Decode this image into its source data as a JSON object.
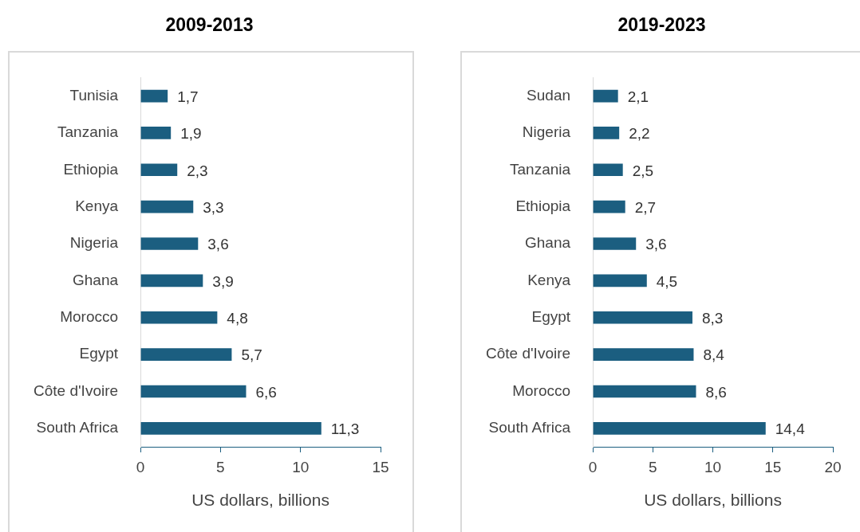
{
  "chart_data": [
    {
      "type": "bar",
      "orientation": "horizontal",
      "title": "2009-2013",
      "xlabel": "US dollars, billions",
      "categories": [
        "Tunisia",
        "Tanzania",
        "Ethiopia",
        "Kenya",
        "Nigeria",
        "Ghana",
        "Morocco",
        "Egypt",
        "Côte d'Ivoire",
        "South Africa"
      ],
      "values": [
        1.7,
        1.9,
        2.3,
        3.3,
        3.6,
        3.9,
        4.8,
        5.7,
        6.6,
        11.3
      ],
      "value_labels": [
        "1,7",
        "1,9",
        "2,3",
        "3,3",
        "3,6",
        "3,9",
        "4,8",
        "5,7",
        "6,6",
        "11,3"
      ],
      "color": "#1b5e80",
      "xlim": [
        0,
        15
      ],
      "xticks": [
        0,
        5,
        10,
        15
      ]
    },
    {
      "type": "bar",
      "orientation": "horizontal",
      "title": "2019-2023",
      "xlabel": "US dollars, billions",
      "categories": [
        "Sudan",
        "Nigeria",
        "Tanzania",
        "Ethiopia",
        "Ghana",
        "Kenya",
        "Egypt",
        "Côte d'Ivoire",
        "Morocco",
        "South Africa"
      ],
      "values": [
        2.1,
        2.2,
        2.5,
        2.7,
        3.6,
        4.5,
        8.3,
        8.4,
        8.6,
        14.4
      ],
      "value_labels": [
        "2,1",
        "2,2",
        "2,5",
        "2,7",
        "3,6",
        "4,5",
        "8,3",
        "8,4",
        "8,6",
        "14,4"
      ],
      "color": "#1b5e80",
      "xlim": [
        0,
        20
      ],
      "xticks": [
        0,
        5,
        10,
        15,
        20
      ]
    }
  ]
}
